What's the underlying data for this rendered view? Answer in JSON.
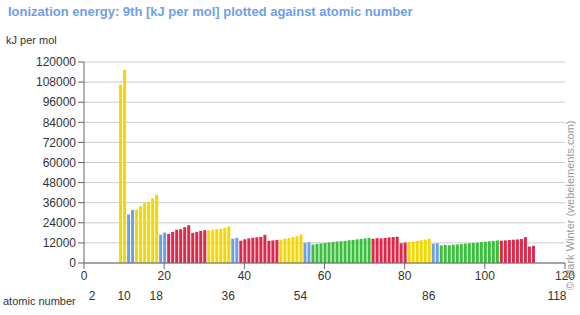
{
  "chart_data": {
    "type": "bar",
    "title": "Ionization energy: 9th [kJ per mol] plotted against atomic number",
    "y_label": "kJ per mol",
    "x_label": "atomic number",
    "annotations": [
      "© Mark Winter (webelements.com)"
    ],
    "x": [
      1,
      2,
      3,
      4,
      5,
      6,
      7,
      8,
      9,
      10,
      11,
      12,
      13,
      14,
      15,
      16,
      17,
      18,
      19,
      20,
      21,
      22,
      23,
      24,
      25,
      26,
      27,
      28,
      29,
      30,
      31,
      32,
      33,
      34,
      35,
      36,
      37,
      38,
      39,
      40,
      41,
      42,
      43,
      44,
      45,
      46,
      47,
      48,
      49,
      50,
      51,
      52,
      53,
      54,
      55,
      56,
      57,
      58,
      59,
      60,
      61,
      62,
      63,
      64,
      65,
      66,
      67,
      68,
      69,
      70,
      71,
      72,
      73,
      74,
      75,
      76,
      77,
      78,
      79,
      80,
      81,
      82,
      83,
      84,
      85,
      86,
      87,
      88,
      89,
      90,
      91,
      92,
      93,
      94,
      95,
      96,
      97,
      98,
      99,
      100,
      101,
      102,
      103,
      104,
      105,
      106,
      107,
      108,
      109,
      110,
      111,
      112,
      113,
      114,
      115,
      116,
      117,
      118
    ],
    "values": [
      null,
      null,
      null,
      null,
      null,
      null,
      null,
      null,
      106434,
      115379,
      28932,
      31653,
      31853,
      33878,
      35905,
      36621,
      38600,
      40760,
      16964,
      18191,
      17370,
      18530,
      19860,
      20190,
      21400,
      22540,
      17959,
      18600,
      19200,
      19600,
      19500,
      19800,
      20100,
      20500,
      20900,
      21800,
      14500,
      15000,
      13300,
      14200,
      14700,
      15100,
      15300,
      15600,
      16800,
      13200,
      13500,
      13800,
      14000,
      14500,
      15000,
      15500,
      16000,
      17000,
      12000,
      12300,
      11000,
      11400,
      11700,
      12000,
      12300,
      12600,
      12800,
      13000,
      13200,
      13600,
      13800,
      14100,
      14400,
      14700,
      14900,
      14500,
      14800,
      14700,
      15000,
      15300,
      15500,
      15700,
      11800,
      12200,
      12500,
      12800,
      13200,
      13600,
      14000,
      14500,
      11500,
      11800,
      10500,
      10800,
      10600,
      10900,
      11100,
      11300,
      11600,
      11800,
      12000,
      12200,
      12500,
      12700,
      13000,
      13200,
      13500,
      13300,
      13500,
      13700,
      13900,
      14100,
      14300,
      15400,
      9800,
      10300,
      null,
      null,
      null,
      null,
      null,
      null
    ],
    "colors": [
      "#6f9ee8",
      "#6f9ee8",
      "#6f9ee8",
      "#6f9ee8",
      "#f2d700",
      "#f2d700",
      "#f2d700",
      "#f2d700",
      "#f2d700",
      "#f2d700",
      "#6f9ee8",
      "#6f9ee8",
      "#f2d700",
      "#f2d700",
      "#f2d700",
      "#f2d700",
      "#f2d700",
      "#f2d700",
      "#6f9ee8",
      "#6f9ee8",
      "#e0284a",
      "#e0284a",
      "#e0284a",
      "#e0284a",
      "#e0284a",
      "#e0284a",
      "#e0284a",
      "#e0284a",
      "#e0284a",
      "#e0284a",
      "#f2d700",
      "#f2d700",
      "#f2d700",
      "#f2d700",
      "#f2d700",
      "#f2d700",
      "#6f9ee8",
      "#6f9ee8",
      "#e0284a",
      "#e0284a",
      "#e0284a",
      "#e0284a",
      "#e0284a",
      "#e0284a",
      "#e0284a",
      "#e0284a",
      "#e0284a",
      "#e0284a",
      "#f2d700",
      "#f2d700",
      "#f2d700",
      "#f2d700",
      "#f2d700",
      "#f2d700",
      "#6f9ee8",
      "#6f9ee8",
      "#38c03a",
      "#38c03a",
      "#38c03a",
      "#38c03a",
      "#38c03a",
      "#38c03a",
      "#38c03a",
      "#38c03a",
      "#38c03a",
      "#38c03a",
      "#38c03a",
      "#38c03a",
      "#38c03a",
      "#38c03a",
      "#38c03a",
      "#e0284a",
      "#e0284a",
      "#e0284a",
      "#e0284a",
      "#e0284a",
      "#e0284a",
      "#e0284a",
      "#e0284a",
      "#e0284a",
      "#f2d700",
      "#f2d700",
      "#f2d700",
      "#f2d700",
      "#f2d700",
      "#f2d700",
      "#6f9ee8",
      "#6f9ee8",
      "#38c03a",
      "#38c03a",
      "#38c03a",
      "#38c03a",
      "#38c03a",
      "#38c03a",
      "#38c03a",
      "#38c03a",
      "#38c03a",
      "#38c03a",
      "#38c03a",
      "#38c03a",
      "#38c03a",
      "#38c03a",
      "#38c03a",
      "#e0284a",
      "#e0284a",
      "#e0284a",
      "#e0284a",
      "#e0284a",
      "#e0284a",
      "#e0284a",
      "#e0284a",
      "#e0284a",
      "#f2d700",
      "#f2d700",
      "#f2d700",
      "#f2d700",
      "#f2d700",
      "#f2d700"
    ],
    "xlim": [
      0,
      120
    ],
    "xticks": [
      0,
      20,
      40,
      60,
      80,
      100,
      120
    ],
    "x2lim": [
      0,
      120
    ],
    "x2ticks": [
      2,
      10,
      18,
      36,
      54,
      86,
      118
    ],
    "ylim": [
      0,
      120000
    ],
    "yticks": [
      0,
      12000,
      24000,
      36000,
      48000,
      60000,
      72000,
      84000,
      96000,
      108000,
      120000
    ],
    "grid": true
  }
}
